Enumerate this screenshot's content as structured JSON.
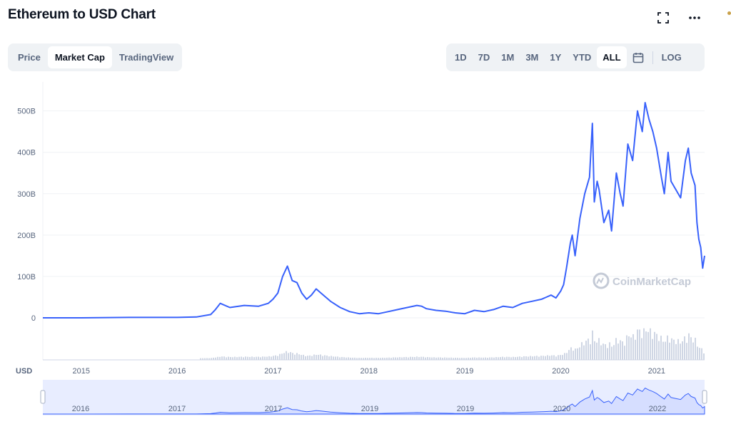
{
  "header": {
    "title": "Ethereum to USD Chart"
  },
  "icons": {
    "fullscreen": "fullscreen-icon",
    "more": "more-icon",
    "calendar": "calendar-icon"
  },
  "tabs_left": [
    {
      "label": "Price",
      "active": false
    },
    {
      "label": "Market Cap",
      "active": true
    },
    {
      "label": "TradingView",
      "active": false
    }
  ],
  "ranges": [
    {
      "label": "1D",
      "active": false
    },
    {
      "label": "7D",
      "active": false
    },
    {
      "label": "1M",
      "active": false
    },
    {
      "label": "3M",
      "active": false
    },
    {
      "label": "1Y",
      "active": false
    },
    {
      "label": "YTD",
      "active": false
    },
    {
      "label": "ALL",
      "active": true
    }
  ],
  "log_label": "LOG",
  "colors": {
    "line": "#3861fb",
    "volume": "#cfd6e4",
    "navigator_fill": "#e8edff",
    "watermark": "#c4cad6"
  },
  "chart_data": {
    "type": "line",
    "currency_label": "USD",
    "watermark": "CoinMarketCap",
    "y_ticks": [
      "0",
      "100B",
      "200B",
      "300B",
      "400B",
      "500B"
    ],
    "y_tick_values": [
      0,
      100,
      200,
      300,
      400,
      500
    ],
    "ylim": [
      0,
      570
    ],
    "y_unit": "B",
    "x_ticks": [
      "2015",
      "2016",
      "2017",
      "2018",
      "2019",
      "2020",
      "2021"
    ],
    "x_range": [
      2014.6,
      2021.5
    ],
    "navigator_ticks": [
      "2016",
      "2017",
      "2017",
      "2019",
      "2019",
      "2020",
      "2022"
    ],
    "grid": true,
    "series": [
      {
        "values_unit": "USD billions",
        "x": [
          2014.6,
          2015.0,
          2015.5,
          2016.0,
          2016.2,
          2016.35,
          2016.4,
          2016.45,
          2016.55,
          2016.7,
          2016.85,
          2016.95,
          2017.0,
          2017.05,
          2017.1,
          2017.15,
          2017.2,
          2017.25,
          2017.3,
          2017.35,
          2017.4,
          2017.45,
          2017.5,
          2017.55,
          2017.6,
          2017.7,
          2017.8,
          2017.9,
          2018.0,
          2018.1,
          2018.2,
          2018.3,
          2018.4,
          2018.5,
          2018.55,
          2018.6,
          2018.7,
          2018.8,
          2018.9,
          2019.0,
          2019.1,
          2019.2,
          2019.3,
          2019.4,
          2019.5,
          2019.6,
          2019.7,
          2019.8,
          2019.85,
          2019.9,
          2019.95,
          2020.0,
          2020.03,
          2020.06,
          2020.1,
          2020.12,
          2020.15,
          2020.2,
          2020.25,
          2020.3,
          2020.33,
          2020.35,
          2020.38,
          2020.4,
          2020.45,
          2020.5,
          2020.53,
          2020.58,
          2020.62,
          2020.65,
          2020.7,
          2020.75,
          2020.8,
          2020.85,
          2020.88,
          2020.92,
          2020.96,
          2021.0,
          2021.05,
          2021.08,
          2021.12,
          2021.15,
          2021.2,
          2021.25,
          2021.3,
          2021.33,
          2021.36,
          2021.4,
          2021.42,
          2021.44,
          2021.46,
          2021.48,
          2021.5
        ],
        "values": [
          0,
          0,
          1,
          1,
          2,
          8,
          20,
          35,
          25,
          30,
          28,
          35,
          45,
          60,
          100,
          125,
          90,
          85,
          60,
          45,
          55,
          70,
          60,
          50,
          40,
          25,
          15,
          10,
          12,
          10,
          15,
          20,
          25,
          30,
          28,
          22,
          18,
          16,
          12,
          10,
          18,
          15,
          20,
          28,
          25,
          35,
          40,
          45,
          50,
          55,
          48,
          65,
          80,
          120,
          180,
          200,
          150,
          240,
          300,
          340,
          470,
          280,
          330,
          310,
          230,
          260,
          210,
          350,
          300,
          270,
          420,
          380,
          500,
          450,
          520,
          480,
          450,
          410,
          340,
          300,
          400,
          330,
          310,
          290,
          380,
          410,
          350,
          320,
          230,
          190,
          170,
          120,
          150
        ]
      }
    ]
  }
}
